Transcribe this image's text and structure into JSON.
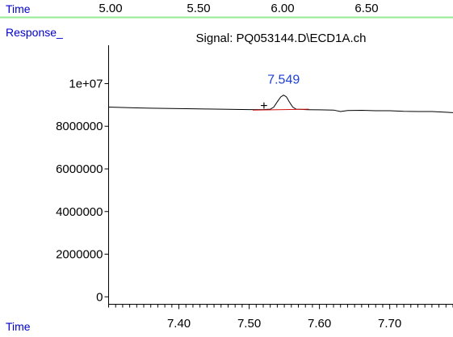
{
  "top_strip": {
    "xlabel": "Time",
    "tick_labels": [
      "5.00",
      "5.50",
      "6.00",
      "6.50"
    ]
  },
  "chart_data": {
    "type": "line",
    "signal_label": "Signal: PQ053144.D\\ECD1A.ch",
    "xlabel": "Time",
    "ylabel": "Response_",
    "xlim": [
      7.3,
      7.79
    ],
    "ylim": [
      -350000,
      11800000
    ],
    "x_ticks": [
      7.4,
      7.5,
      7.6,
      7.7
    ],
    "x_tick_labels": [
      "7.40",
      "7.50",
      "7.60",
      "7.70"
    ],
    "x_minor_step": 0.01,
    "y_ticks": [
      0,
      2000000,
      4000000,
      6000000,
      8000000,
      10000000
    ],
    "y_tick_labels": [
      "0",
      "2000000",
      "4000000",
      "6000000",
      "8000000",
      "1e+07"
    ],
    "series": [
      {
        "color": "#000000",
        "x": [
          7.3,
          7.32,
          7.34,
          7.36,
          7.38,
          7.4,
          7.42,
          7.44,
          7.46,
          7.48,
          7.5,
          7.52,
          7.53,
          7.535,
          7.54,
          7.545,
          7.549,
          7.553,
          7.557,
          7.562,
          7.567,
          7.575,
          7.58,
          7.6,
          7.62,
          7.63,
          7.64,
          7.66,
          7.68,
          7.7,
          7.72,
          7.74,
          7.76,
          7.78,
          7.79
        ],
        "y": [
          8900000,
          8880000,
          8860000,
          8850000,
          8840000,
          8830000,
          8820000,
          8810000,
          8800000,
          8790000,
          8780000,
          8780000,
          8800000,
          8900000,
          9150000,
          9380000,
          9460000,
          9380000,
          9150000,
          8900000,
          8800000,
          8790000,
          8780000,
          8770000,
          8760000,
          8690000,
          8740000,
          8750000,
          8730000,
          8730000,
          8700000,
          8690000,
          8690000,
          8660000,
          8640000
        ]
      }
    ],
    "baseline": {
      "color": "#d11111",
      "x": [
        7.505,
        7.585
      ],
      "y": [
        8760000,
        8800000
      ]
    },
    "peak": {
      "label": "7.549",
      "rt": 7.549,
      "apex": 9460000
    },
    "start_marker": {
      "label": "+",
      "x": 7.521,
      "y": 9000000
    }
  }
}
